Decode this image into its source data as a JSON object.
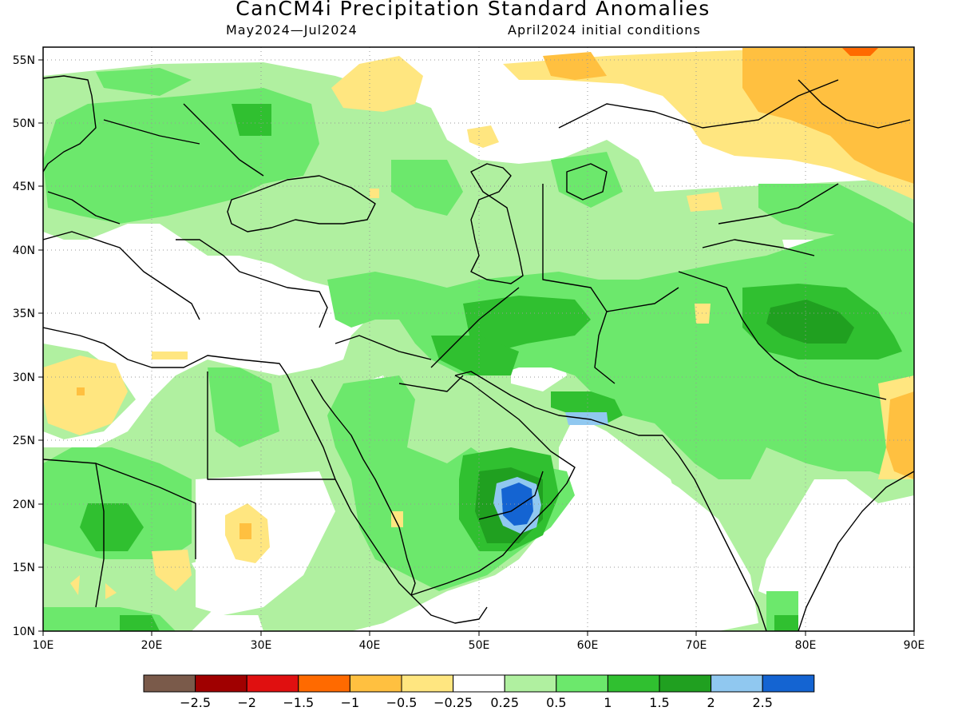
{
  "title": "CanCM4i Precipitation Standard Anomalies",
  "subtitle_left": "May2024—Jul2024",
  "subtitle_right": "April2024 initial conditions",
  "map": {
    "lon_ticks": [
      "10E",
      "20E",
      "30E",
      "40E",
      "50E",
      "60E",
      "70E",
      "80E",
      "90E"
    ],
    "lat_ticks": [
      "55N",
      "50N",
      "45N",
      "40N",
      "35N",
      "30N",
      "25N",
      "20N",
      "15N",
      "10N"
    ]
  },
  "colorbar": {
    "colors": [
      "#7a5a4a",
      "#a00000",
      "#e01010",
      "#ff6a00",
      "#ffc040",
      "#ffe680",
      "#ffffff",
      "#b0f0a0",
      "#6ce86c",
      "#30c030",
      "#20a020",
      "#90c8f0",
      "#1464d2"
    ],
    "labels": [
      "−2.5",
      "−2",
      "−1.5",
      "−1",
      "−0.5",
      "−0.25",
      "0.25",
      "0.5",
      "1",
      "1.5",
      "2",
      "2.5"
    ]
  },
  "palette": {
    "light_green": "#b0f0a0",
    "green": "#6ce86c",
    "mid_green": "#30c030",
    "dark_green": "#20a020",
    "light_blue": "#90c8f0",
    "blue": "#1464d2",
    "yellow": "#ffe680",
    "orange": "#ffc040",
    "dark_orange": "#ff6a00"
  }
}
